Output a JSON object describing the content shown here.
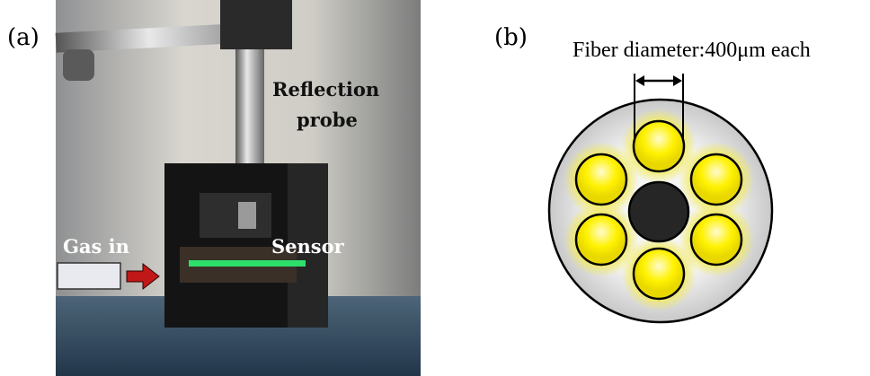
{
  "panel_a": {
    "label": "(a)",
    "annotations": {
      "probe_lines": [
        "Reflection",
        "probe"
      ],
      "gas_in": "Gas in",
      "sensor": "Sensor"
    }
  },
  "panel_b": {
    "label": "(b)",
    "caption": "Fiber diameter:400μm each"
  }
}
